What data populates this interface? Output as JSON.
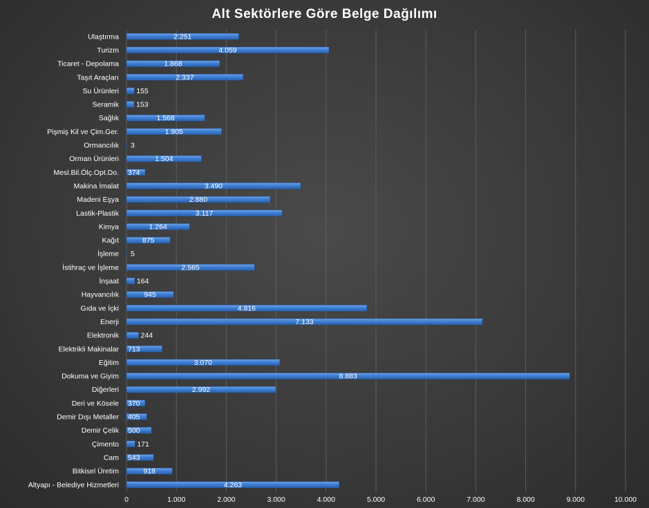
{
  "chart_data": {
    "type": "bar",
    "orientation": "horizontal",
    "title": "Alt Sektörlere Göre Belge Dağılımı",
    "xlim": [
      0,
      10000
    ],
    "x_ticks": [
      "0",
      "1.000",
      "2.000",
      "3.000",
      "4.000",
      "5.000",
      "6.000",
      "7.000",
      "8.000",
      "9.000",
      "10.000"
    ],
    "grid": true,
    "bar_color": "#3f7fd4",
    "bars": [
      {
        "category": "Ulaştırma",
        "value": 2251,
        "label": "2.251"
      },
      {
        "category": "Turizm",
        "value": 4059,
        "label": "4.059"
      },
      {
        "category": "Ticaret - Depolama",
        "value": 1868,
        "label": "1.868"
      },
      {
        "category": "Taşıt Araçları",
        "value": 2337,
        "label": "2.337"
      },
      {
        "category": "Su Ürünleri",
        "value": 155,
        "label": "155"
      },
      {
        "category": "Seramik",
        "value": 153,
        "label": "153"
      },
      {
        "category": "Sağlık",
        "value": 1568,
        "label": "1.568"
      },
      {
        "category": "Pişmiş Kil ve Çim.Ger.",
        "value": 1905,
        "label": "1.905"
      },
      {
        "category": "Ormancılık",
        "value": 3,
        "label": "3"
      },
      {
        "category": "Orman Ürünleri",
        "value": 1504,
        "label": "1.504"
      },
      {
        "category": "Mesl.Bil.Ölç.Opt.Do.",
        "value": 374,
        "label": "374"
      },
      {
        "category": "Makina İmalat",
        "value": 3490,
        "label": "3.490"
      },
      {
        "category": "Madeni Eşya",
        "value": 2880,
        "label": "2.880"
      },
      {
        "category": "Lastik-Plastik",
        "value": 3117,
        "label": "3.117"
      },
      {
        "category": "Kimya",
        "value": 1264,
        "label": "1.264"
      },
      {
        "category": "Kağıt",
        "value": 875,
        "label": "875"
      },
      {
        "category": "İşleme",
        "value": 5,
        "label": "5"
      },
      {
        "category": "İstihraç ve İşleme",
        "value": 2565,
        "label": "2.565"
      },
      {
        "category": "İnşaat",
        "value": 164,
        "label": "164"
      },
      {
        "category": "Hayvancılık",
        "value": 945,
        "label": "945"
      },
      {
        "category": "Gıda ve İçki",
        "value": 4816,
        "label": "4.816"
      },
      {
        "category": "Enerji",
        "value": 7133,
        "label": "7.133"
      },
      {
        "category": "Elektronik",
        "value": 244,
        "label": "244"
      },
      {
        "category": "Elektrikli Makinalar",
        "value": 713,
        "label": "713"
      },
      {
        "category": "Eğitim",
        "value": 3070,
        "label": "3.070"
      },
      {
        "category": "Dokuma ve Giyim",
        "value": 8883,
        "label": "8.883"
      },
      {
        "category": "Diğerleri",
        "value": 2992,
        "label": "2.992"
      },
      {
        "category": "Deri ve Kösele",
        "value": 370,
        "label": "370"
      },
      {
        "category": "Demir Dışı Metaller",
        "value": 405,
        "label": "405"
      },
      {
        "category": "Demir Çelik",
        "value": 500,
        "label": "500"
      },
      {
        "category": "Çimento",
        "value": 171,
        "label": "171"
      },
      {
        "category": "Cam",
        "value": 543,
        "label": "543"
      },
      {
        "category": "Bitkisel Üretim",
        "value": 918,
        "label": "918"
      },
      {
        "category": "Altyapı - Belediye Hizmetleri",
        "value": 4263,
        "label": "4.263"
      }
    ]
  }
}
